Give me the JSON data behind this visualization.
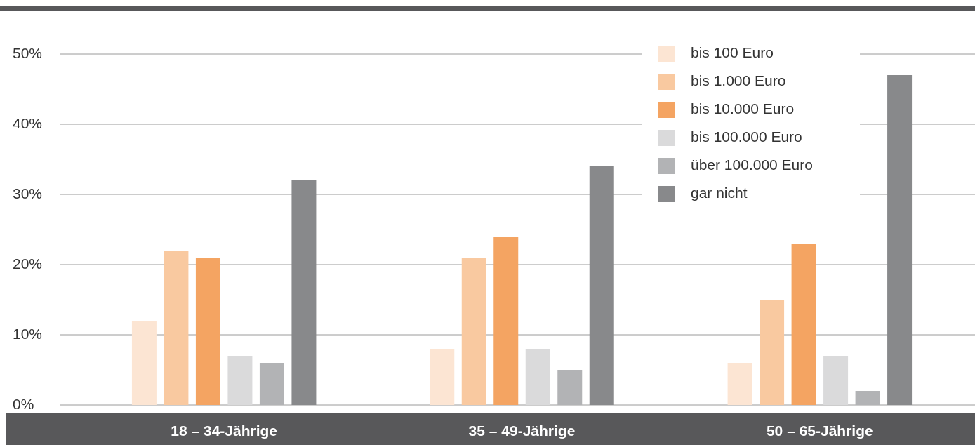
{
  "chart_data": {
    "type": "bar",
    "categories": [
      "18 – 34-Jährige",
      "35 – 49-Jährige",
      "50 – 65-Jährige"
    ],
    "series": [
      {
        "name": "bis 100 Euro",
        "color": "#fce5d3",
        "values": [
          12,
          8,
          6
        ]
      },
      {
        "name": "bis 1.000 Euro",
        "color": "#f9c9a0",
        "values": [
          22,
          21,
          15
        ]
      },
      {
        "name": "bis 10.000 Euro",
        "color": "#f4a462",
        "values": [
          21,
          24,
          23
        ]
      },
      {
        "name": "bis 100.000 Euro",
        "color": "#dadadb",
        "values": [
          7,
          8,
          7
        ]
      },
      {
        "name": "über 100.000 Euro",
        "color": "#b2b3b5",
        "values": [
          6,
          5,
          2
        ]
      },
      {
        "name": "gar nicht",
        "color": "#88898b",
        "values": [
          32,
          34,
          47
        ]
      }
    ],
    "ylim": [
      0,
      50
    ],
    "yticks": [
      {
        "value": 0,
        "label": "0%"
      },
      {
        "value": 10,
        "label": "10%"
      },
      {
        "value": 20,
        "label": "20%"
      },
      {
        "value": 30,
        "label": "30%"
      },
      {
        "value": 40,
        "label": "40%"
      },
      {
        "value": 50,
        "label": "50%"
      }
    ],
    "grid": "y",
    "legend": "top right"
  }
}
